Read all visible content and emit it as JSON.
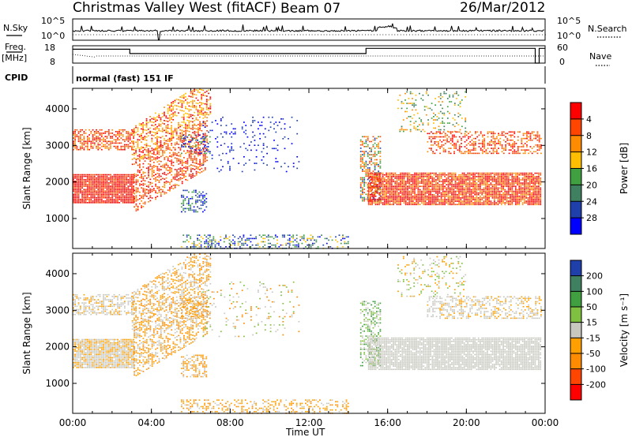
{
  "header": {
    "station": "Christmas Valley West (fitACF)",
    "beam": "Beam 07",
    "date": "26/Mar/2012"
  },
  "status_panels": {
    "nsky_label": "N.Sky",
    "nsky_top": "10^5",
    "nsky_bottom": "10^0",
    "nsearch_label": "N.Search",
    "nsearch_top": "10^5",
    "nsearch_bottom": "10^0",
    "freq_label_1": "Freq.",
    "freq_label_2": "[MHz]",
    "freq_top": "18",
    "freq_bottom": "8",
    "nave_label": "Nave",
    "nave_top": "60",
    "nave_bottom": "0",
    "cpid_label": "CPID",
    "cpid_value": "normal (fast) 151 IF"
  },
  "colors": {
    "power": [
      "#0000ff",
      "#1f3faa",
      "#3f8060",
      "#40a040",
      "#ffbf00",
      "#ff8c00",
      "#ff4500",
      "#ff0000"
    ],
    "velocity": [
      "#ff0000",
      "#ff4500",
      "#ff8c00",
      "#ffa000",
      "#c8c8c0",
      "#80c040",
      "#40a040",
      "#3f8060",
      "#1f3faa"
    ]
  },
  "chart_data": [
    {
      "type": "heatmap",
      "name": "Power",
      "ylabel": "Slant Range [km]",
      "yticks": [
        "1000",
        "2000",
        "3000",
        "4000"
      ],
      "ylim": [
        180,
        4560
      ],
      "xticks": [
        "00:00",
        "04:00",
        "08:00",
        "12:00",
        "16:00",
        "20:00",
        "00:00"
      ],
      "xlim_hours": [
        0,
        24
      ],
      "colorbar_label": "Power [dB]",
      "colorbar_ticks": [
        "4",
        "8",
        "12",
        "16",
        "20",
        "24",
        "28"
      ]
    },
    {
      "type": "heatmap",
      "name": "Velocity",
      "ylabel": "Slant Range [km]",
      "yticks": [
        "1000",
        "2000",
        "3000",
        "4000"
      ],
      "ylim": [
        180,
        4560
      ],
      "xticks": [
        "00:00",
        "04:00",
        "08:00",
        "12:00",
        "16:00",
        "20:00",
        "00:00"
      ],
      "xlim_hours": [
        0,
        24
      ],
      "xlabel": "Time UT",
      "colorbar_label": "Velocity [m s⁻¹]",
      "colorbar_ticks": [
        "200",
        "100",
        "50",
        "15",
        "-15",
        "-50",
        "-100",
        "-200"
      ]
    }
  ]
}
